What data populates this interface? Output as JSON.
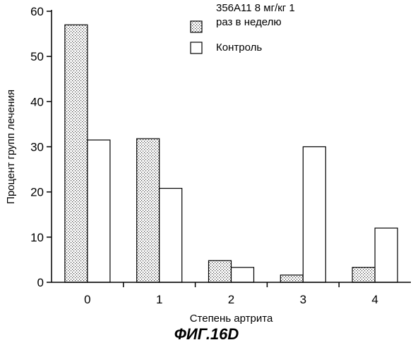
{
  "chart_data": {
    "type": "bar",
    "categories": [
      "0",
      "1",
      "2",
      "3",
      "4"
    ],
    "series": [
      {
        "name": "356A11 8 мг/кг 1 раз в неделю",
        "legend_lines": [
          "356A11 8 мг/кг 1",
          "раз в неделю"
        ],
        "pattern": "stippled",
        "values": [
          57,
          31.8,
          4.8,
          1.6,
          3.3
        ]
      },
      {
        "name": "Контроль",
        "legend_lines": [
          "Контроль"
        ],
        "pattern": "empty",
        "values": [
          31.5,
          20.8,
          3.3,
          30,
          12
        ]
      }
    ],
    "xlabel": "Степень артрита",
    "ylabel": "Процент групп лечения",
    "ylim": [
      0,
      60
    ],
    "yticks": [
      "0",
      "10",
      "20",
      "30",
      "40",
      "50",
      "60"
    ],
    "grid": false,
    "legend_position": "top-right",
    "colors": {
      "stroke": "#000000",
      "background": "#ffffff",
      "stipple_dot": "#333333"
    }
  },
  "caption": "ФИГ.16D"
}
